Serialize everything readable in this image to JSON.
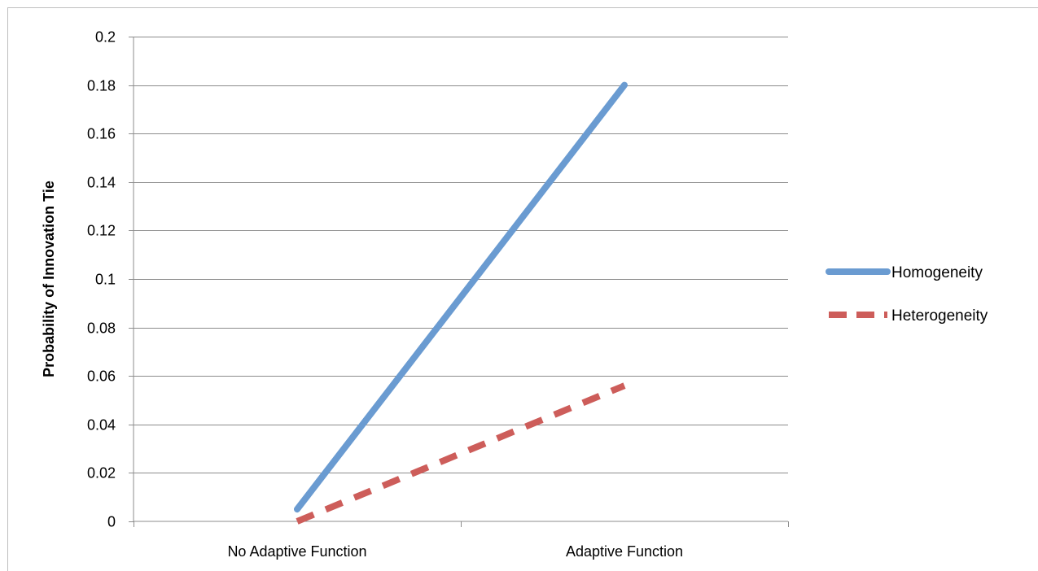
{
  "chart_data": {
    "type": "line",
    "title": "",
    "xlabel": "",
    "ylabel": "Probability of Innovation Tie",
    "categories": [
      "No Adaptive Function",
      "Adaptive Function"
    ],
    "ylim": [
      0,
      0.2
    ],
    "yticks": [
      "0",
      "0.02",
      "0.04",
      "0.06",
      "0.08",
      "0.1",
      "0.12",
      "0.14",
      "0.16",
      "0.18",
      "0.2"
    ],
    "grid": true,
    "legend_position": "right",
    "series": [
      {
        "name": "Homogeneity",
        "values": [
          0.005,
          0.18
        ],
        "color": "#6a9bd1",
        "style": "solid"
      },
      {
        "name": "Heterogeneity",
        "values": [
          0.0,
          0.056
        ],
        "color": "#cd5d5a",
        "style": "dashed"
      }
    ]
  }
}
